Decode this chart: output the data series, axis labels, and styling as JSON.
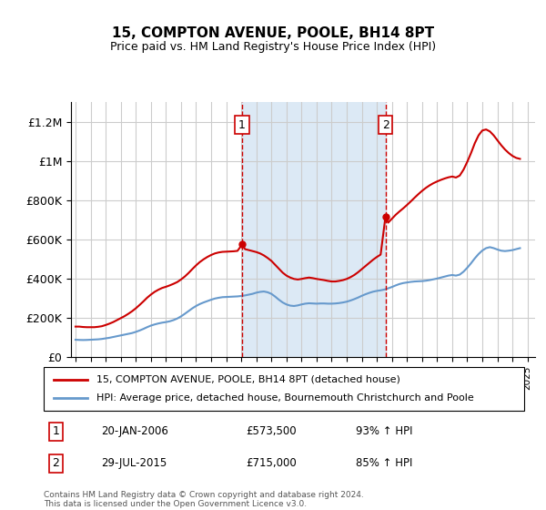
{
  "title": "15, COMPTON AVENUE, POOLE, BH14 8PT",
  "subtitle": "Price paid vs. HM Land Registry's House Price Index (HPI)",
  "ylabel_ticks": [
    "£0",
    "£200K",
    "£400K",
    "£600K",
    "£800K",
    "£1M",
    "£1.2M"
  ],
  "ylim": [
    0,
    1300000
  ],
  "xlim_start": 1995,
  "xlim_end": 2025.5,
  "background_color": "#ffffff",
  "plot_bg_color": "#ffffff",
  "grid_color": "#cccccc",
  "sale1_date": 2006.055,
  "sale1_label": "1",
  "sale2_date": 2015.57,
  "sale2_label": "2",
  "shade_color": "#dce9f5",
  "sale_line_color": "#cc0000",
  "hpi_line_color": "#6699cc",
  "property_line_color": "#cc0000",
  "legend_entry1": "15, COMPTON AVENUE, POOLE, BH14 8PT (detached house)",
  "legend_entry2": "HPI: Average price, detached house, Bournemouth Christchurch and Poole",
  "table_row1_num": "1",
  "table_row1_date": "20-JAN-2006",
  "table_row1_price": "£573,500",
  "table_row1_hpi": "93% ↑ HPI",
  "table_row2_num": "2",
  "table_row2_date": "29-JUL-2015",
  "table_row2_price": "£715,000",
  "table_row2_hpi": "85% ↑ HPI",
  "footer": "Contains HM Land Registry data © Crown copyright and database right 2024.\nThis data is licensed under the Open Government Licence v3.0.",
  "hpi_x": [
    1995.0,
    1995.25,
    1995.5,
    1995.75,
    1996.0,
    1996.25,
    1996.5,
    1996.75,
    1997.0,
    1997.25,
    1997.5,
    1997.75,
    1998.0,
    1998.25,
    1998.5,
    1998.75,
    1999.0,
    1999.25,
    1999.5,
    1999.75,
    2000.0,
    2000.25,
    2000.5,
    2000.75,
    2001.0,
    2001.25,
    2001.5,
    2001.75,
    2002.0,
    2002.25,
    2002.5,
    2002.75,
    2003.0,
    2003.25,
    2003.5,
    2003.75,
    2004.0,
    2004.25,
    2004.5,
    2004.75,
    2005.0,
    2005.25,
    2005.5,
    2005.75,
    2006.0,
    2006.25,
    2006.5,
    2006.75,
    2007.0,
    2007.25,
    2007.5,
    2007.75,
    2008.0,
    2008.25,
    2008.5,
    2008.75,
    2009.0,
    2009.25,
    2009.5,
    2009.75,
    2010.0,
    2010.25,
    2010.5,
    2010.75,
    2011.0,
    2011.25,
    2011.5,
    2011.75,
    2012.0,
    2012.25,
    2012.5,
    2012.75,
    2013.0,
    2013.25,
    2013.5,
    2013.75,
    2014.0,
    2014.25,
    2014.5,
    2014.75,
    2015.0,
    2015.25,
    2015.5,
    2015.75,
    2016.0,
    2016.25,
    2016.5,
    2016.75,
    2017.0,
    2017.25,
    2017.5,
    2017.75,
    2018.0,
    2018.25,
    2018.5,
    2018.75,
    2019.0,
    2019.25,
    2019.5,
    2019.75,
    2020.0,
    2020.25,
    2020.5,
    2020.75,
    2021.0,
    2021.25,
    2021.5,
    2021.75,
    2022.0,
    2022.25,
    2022.5,
    2022.75,
    2023.0,
    2023.25,
    2023.5,
    2023.75,
    2024.0,
    2024.25,
    2024.5
  ],
  "hpi_y": [
    88000,
    87000,
    86500,
    87000,
    88000,
    89000,
    90000,
    92000,
    95000,
    98000,
    102000,
    106000,
    110000,
    114000,
    118000,
    122000,
    128000,
    135000,
    143000,
    152000,
    160000,
    166000,
    171000,
    175000,
    178000,
    182000,
    188000,
    196000,
    207000,
    220000,
    234000,
    248000,
    260000,
    270000,
    278000,
    285000,
    292000,
    298000,
    302000,
    305000,
    306000,
    307000,
    308000,
    309000,
    311000,
    314000,
    318000,
    322000,
    328000,
    332000,
    334000,
    330000,
    322000,
    308000,
    292000,
    278000,
    268000,
    262000,
    260000,
    263000,
    268000,
    272000,
    274000,
    273000,
    272000,
    273000,
    273000,
    272000,
    272000,
    273000,
    275000,
    278000,
    282000,
    288000,
    295000,
    303000,
    312000,
    320000,
    327000,
    333000,
    337000,
    340000,
    344000,
    350000,
    357000,
    365000,
    372000,
    377000,
    380000,
    383000,
    385000,
    386000,
    387000,
    389000,
    392000,
    396000,
    400000,
    405000,
    410000,
    415000,
    418000,
    415000,
    420000,
    435000,
    455000,
    478000,
    503000,
    525000,
    543000,
    555000,
    560000,
    555000,
    548000,
    542000,
    540000,
    542000,
    545000,
    550000,
    555000
  ],
  "prop_x": [
    1995.0,
    1995.25,
    1995.5,
    1995.75,
    1996.0,
    1996.25,
    1996.5,
    1996.75,
    1997.0,
    1997.25,
    1997.5,
    1997.75,
    1998.0,
    1998.25,
    1998.5,
    1998.75,
    1999.0,
    1999.25,
    1999.5,
    1999.75,
    2000.0,
    2000.25,
    2000.5,
    2000.75,
    2001.0,
    2001.25,
    2001.5,
    2001.75,
    2002.0,
    2002.25,
    2002.5,
    2002.75,
    2003.0,
    2003.25,
    2003.5,
    2003.75,
    2004.0,
    2004.25,
    2004.5,
    2004.75,
    2005.0,
    2005.25,
    2005.5,
    2005.75,
    2006.055,
    2006.25,
    2006.5,
    2006.75,
    2007.0,
    2007.25,
    2007.5,
    2007.75,
    2008.0,
    2008.25,
    2008.5,
    2008.75,
    2009.0,
    2009.25,
    2009.5,
    2009.75,
    2010.0,
    2010.25,
    2010.5,
    2010.75,
    2011.0,
    2011.25,
    2011.5,
    2011.75,
    2012.0,
    2012.25,
    2012.5,
    2012.75,
    2013.0,
    2013.25,
    2013.5,
    2013.75,
    2014.0,
    2014.25,
    2014.5,
    2014.75,
    2015.0,
    2015.25,
    2015.57,
    2015.75,
    2016.0,
    2016.25,
    2016.5,
    2016.75,
    2017.0,
    2017.25,
    2017.5,
    2017.75,
    2018.0,
    2018.25,
    2018.5,
    2018.75,
    2019.0,
    2019.25,
    2019.5,
    2019.75,
    2020.0,
    2020.25,
    2020.5,
    2020.75,
    2021.0,
    2021.25,
    2021.5,
    2021.75,
    2022.0,
    2022.25,
    2022.5,
    2022.75,
    2023.0,
    2023.25,
    2023.5,
    2023.75,
    2024.0,
    2024.25,
    2024.5
  ],
  "prop_y": [
    155000,
    155000,
    153000,
    152000,
    152000,
    152000,
    154000,
    157000,
    163000,
    170000,
    178000,
    188000,
    198000,
    208000,
    220000,
    233000,
    248000,
    265000,
    283000,
    302000,
    318000,
    332000,
    343000,
    352000,
    358000,
    365000,
    373000,
    382000,
    395000,
    410000,
    428000,
    448000,
    467000,
    484000,
    498000,
    510000,
    520000,
    528000,
    533000,
    536000,
    537000,
    538000,
    539000,
    541000,
    573500,
    550000,
    545000,
    540000,
    535000,
    528000,
    518000,
    505000,
    490000,
    470000,
    450000,
    430000,
    415000,
    405000,
    398000,
    395000,
    398000,
    402000,
    405000,
    402000,
    398000,
    395000,
    392000,
    388000,
    385000,
    385000,
    388000,
    392000,
    398000,
    407000,
    418000,
    432000,
    448000,
    464000,
    480000,
    496000,
    510000,
    522000,
    715000,
    685000,
    705000,
    725000,
    742000,
    758000,
    775000,
    793000,
    812000,
    830000,
    847000,
    862000,
    875000,
    886000,
    895000,
    903000,
    910000,
    916000,
    920000,
    915000,
    925000,
    955000,
    995000,
    1040000,
    1090000,
    1130000,
    1155000,
    1160000,
    1150000,
    1130000,
    1105000,
    1080000,
    1058000,
    1040000,
    1025000,
    1015000,
    1010000
  ]
}
